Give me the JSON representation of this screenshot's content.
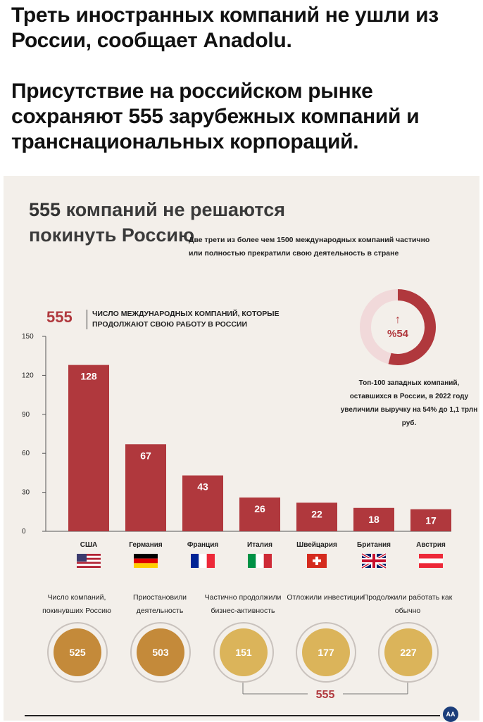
{
  "headline": {
    "line1": "Треть иностранных компаний не ушли из России, сообщает Anadolu.",
    "line2": "Присутствие на российском рынке сохраняют 555 зарубежных компаний и транснациональных корпораций."
  },
  "infographic": {
    "title_num": "555",
    "title_rest": "компаний не решаются",
    "title_line2": "покинуть Россию",
    "note": "Две трети из более чем 1500 международных компаний частично или полностью прекратили свою деятельность в стране",
    "legend_num": "555",
    "legend_text": "ЧИСЛО МЕЖДУНАРОДНЫХ КОМПАНИЙ, КОТОРЫЕ ПРОДОЛЖАЮТ СВОЮ РАБОТУ В РОССИИ",
    "ring": {
      "label": "%54",
      "arrow": "↑",
      "fraction": 0.54,
      "text": "Топ-100 западных компаний, оставшихся в России, в 2022 году увеличили выручку на 54% до 1,1 трлн руб."
    },
    "stats": [
      {
        "label": "Число компаний, покинувших Россию",
        "value": "525",
        "color": "#c48a3a"
      },
      {
        "label": "Приостановили деятельность",
        "value": "503",
        "color": "#c48a3a"
      },
      {
        "label": "Частично продолжили бизнес-активность",
        "value": "151",
        "color": "#dbb45a"
      },
      {
        "label": "Отложили инвестиции",
        "value": "177",
        "color": "#dbb45a"
      },
      {
        "label": "Продолжили работать как обычно",
        "value": "227",
        "color": "#dbb45a"
      }
    ],
    "stats_total": "555",
    "logo": "AA",
    "colors": {
      "bar": "#b0383d",
      "accent": "#b0383d",
      "ring_track": "#f1d9da"
    }
  },
  "chart_data": {
    "type": "bar",
    "categories": [
      "США",
      "Германия",
      "Франция",
      "Италия",
      "Швейцария",
      "Британия",
      "Австрия"
    ],
    "values": [
      128,
      67,
      43,
      26,
      22,
      18,
      17
    ],
    "ylim": [
      0,
      150
    ],
    "yticks": [
      0,
      30,
      60,
      90,
      120,
      150
    ],
    "grid": false,
    "title": "",
    "xlabel": "",
    "ylabel": "",
    "flags": [
      "us-flag",
      "germany-flag",
      "france-flag",
      "italy-flag",
      "switzerland-flag",
      "uk-flag",
      "austria-flag"
    ]
  }
}
